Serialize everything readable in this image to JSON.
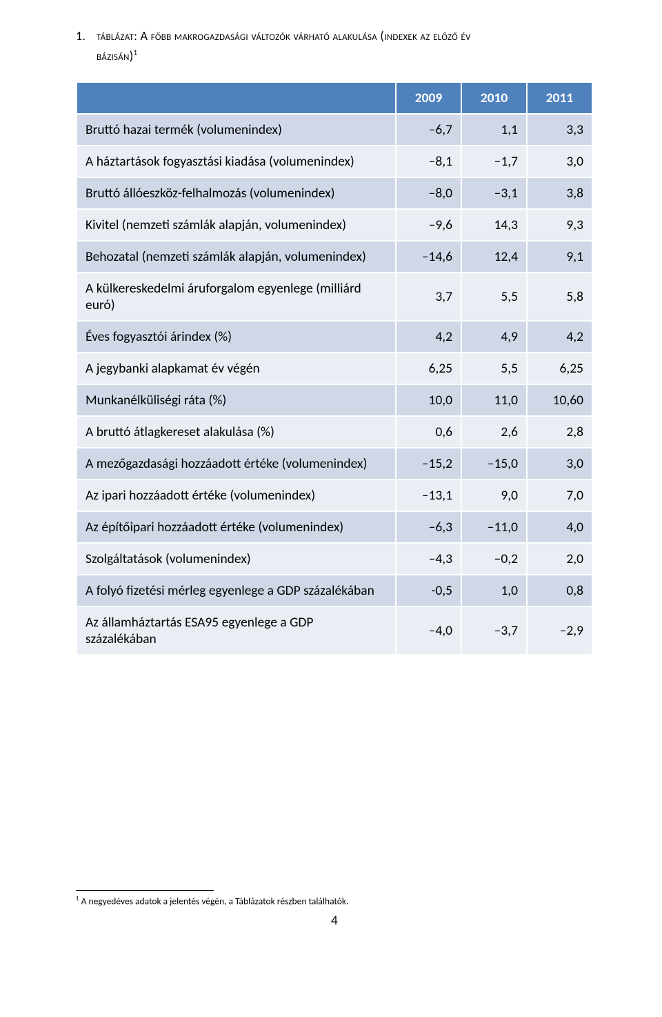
{
  "title": {
    "number": "1.",
    "line1": "táblázat: A főbb makrogazdasági változók várható alakulása (indexek az előző év",
    "line2": "bázisán)",
    "sup": "1"
  },
  "table": {
    "row_colors": {
      "even": "#d0d8e8",
      "odd": "#e9edf4"
    },
    "header_bg": "#4f81bd",
    "header_color": "#ffffff",
    "border_color": "#ffffff",
    "label_fontsize": 19.5,
    "columns": [
      "",
      "2009",
      "2010",
      "2011"
    ],
    "rows": [
      {
        "label": "Bruttó hazai termék (volumenindex)",
        "values": [
          "–6,7",
          "1,1",
          "3,3"
        ]
      },
      {
        "label": "A háztartások fogyasztási kiadása (volumenindex)",
        "values": [
          "–8,1",
          "–1,7",
          "3,0"
        ]
      },
      {
        "label": "Bruttó állóeszköz-felhalmozás (volumenindex)",
        "values": [
          "–8,0",
          "–3,1",
          "3,8"
        ]
      },
      {
        "label": "Kivitel (nemzeti számlák alapján, volumenindex)",
        "values": [
          "–9,6",
          "14,3",
          "9,3"
        ]
      },
      {
        "label": "Behozatal (nemzeti számlák alapján, volumenindex)",
        "values": [
          "–14,6",
          "12,4",
          "9,1"
        ]
      },
      {
        "label": "A külkereskedelmi áruforgalom egyenlege (milliárd euró)",
        "values": [
          "3,7",
          "5,5",
          "5,8"
        ]
      },
      {
        "label": "Éves fogyasztói árindex (%)",
        "values": [
          "4,2",
          "4,9",
          "4,2"
        ]
      },
      {
        "label": "A jegybanki alapkamat év végén",
        "values": [
          "6,25",
          "5,5",
          "6,25"
        ]
      },
      {
        "label": "Munkanélküliségi ráta (%)",
        "values": [
          "10,0",
          "11,0",
          "10,60"
        ]
      },
      {
        "label": "A bruttó átlagkereset alakulása (%)",
        "values": [
          "0,6",
          "2,6",
          "2,8"
        ]
      },
      {
        "label": "A mezőgazdasági hozzáadott értéke (volumenindex)",
        "values": [
          "–15,2",
          "–15,0",
          "3,0"
        ]
      },
      {
        "label": "Az ipari hozzáadott értéke (volumenindex)",
        "values": [
          "–13,1",
          "9,0",
          "7,0"
        ]
      },
      {
        "label": "Az építőipari hozzáadott értéke (volumenindex)",
        "values": [
          "–6,3",
          "–11,0",
          "4,0"
        ]
      },
      {
        "label": "Szolgáltatások (volumenindex)",
        "values": [
          "–4,3",
          "–0,2",
          "2,0"
        ]
      },
      {
        "label": "A folyó fizetési mérleg egyenlege a GDP százalékában",
        "values": [
          "-0,5",
          "1,0",
          "0,8"
        ]
      },
      {
        "label": "Az államháztartás ESA95 egyenlege a GDP százalékában",
        "values": [
          "–4,0",
          "–3,7",
          "–2,9"
        ]
      }
    ]
  },
  "footnote": {
    "sup": "1",
    "text": " A negyedéves adatok a jelentés végén, a Táblázatok részben találhatók."
  },
  "page_number": "4"
}
